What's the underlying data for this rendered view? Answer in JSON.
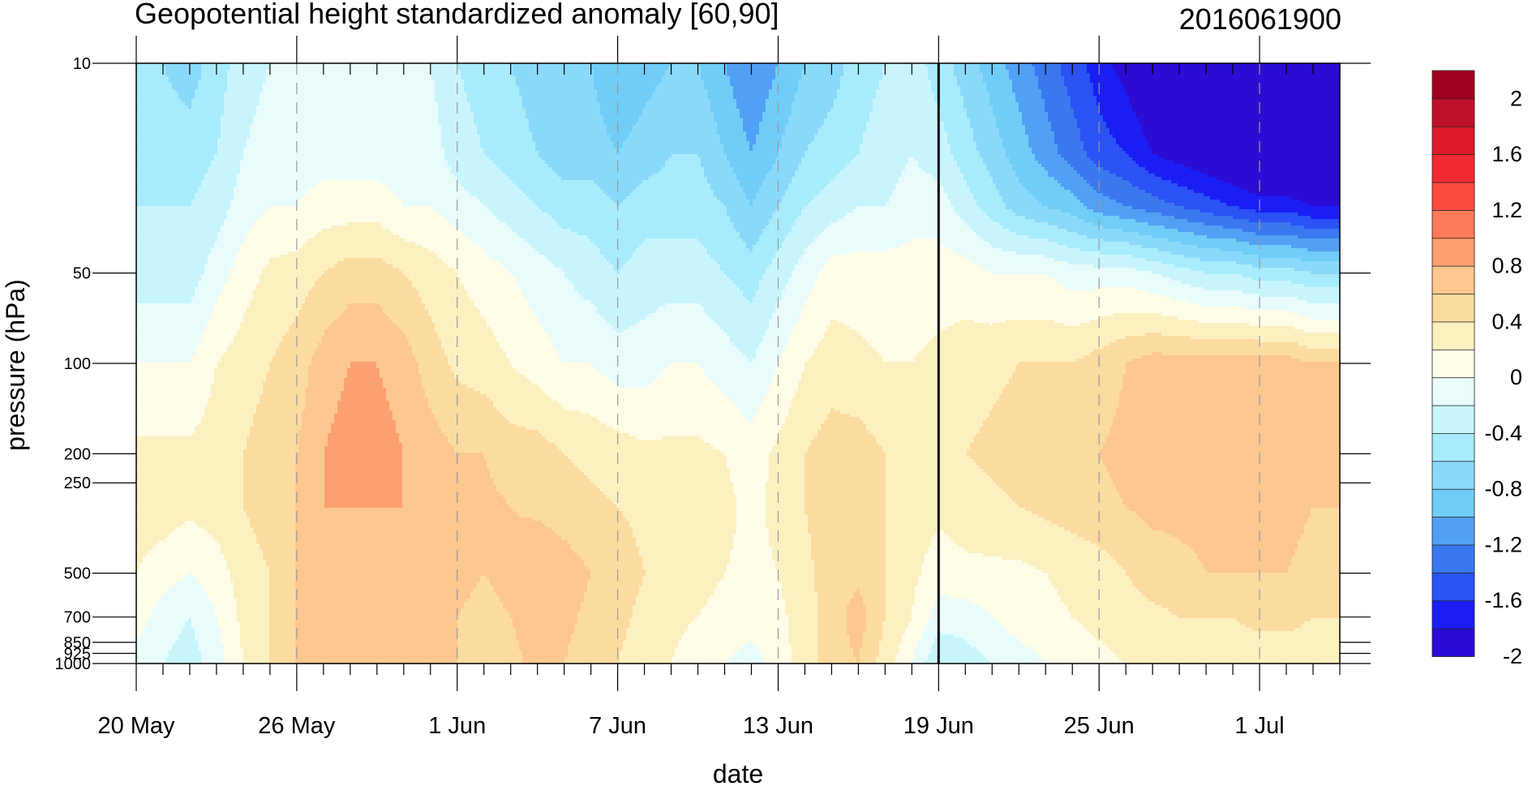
{
  "chart_data": {
    "type": "heatmap",
    "title": "Geopotential height standardized anomaly [60,90]",
    "subtitle": "2016061900",
    "xlabel": "date",
    "ylabel": "pressure (hPa)",
    "x_ticks": [
      "20 May",
      "26 May",
      "1 Jun",
      "7 Jun",
      "13 Jun",
      "19 Jun",
      "25 Jun",
      "1 Jul"
    ],
    "x_tick_days": [
      0,
      6,
      12,
      18,
      24,
      30,
      36,
      42
    ],
    "x_range_days": [
      0,
      45
    ],
    "current_day": 30,
    "y_ticks": [
      10,
      50,
      100,
      200,
      250,
      500,
      700,
      850,
      925,
      1000
    ],
    "y_tick_labels": [
      "10",
      "50",
      "100",
      "200",
      "250",
      "500",
      "700",
      "850",
      "925",
      "1000"
    ],
    "ylim": [
      1000,
      10
    ],
    "colorbar_labels": [
      "2",
      "1.6",
      "1.2",
      "0.8",
      "0.4",
      "0",
      "-0.4",
      "-0.8",
      "-1.2",
      "-1.6",
      "-2"
    ],
    "colorbar_levels": [
      -2.2,
      -2.0,
      -1.8,
      -1.6,
      -1.4,
      -1.2,
      -1.0,
      -0.8,
      -0.6,
      -0.4,
      -0.2,
      0,
      0.2,
      0.4,
      0.6,
      0.8,
      1.0,
      1.2,
      1.4,
      1.6,
      1.8,
      2.0,
      2.2
    ],
    "colorbar_colors": [
      "#2a0cd4",
      "#1a1ef5",
      "#2a52f5",
      "#3a78f0",
      "#52a0f5",
      "#70cdf8",
      "#8ad9fa",
      "#a8ebfc",
      "#c8f5fd",
      "#e8fcfc",
      "#fffce8",
      "#fdf0c0",
      "#fcdba0",
      "#fcc890",
      "#fca070",
      "#fd7a58",
      "#fc4a40",
      "#f02a32",
      "#dc1a2a",
      "#c0102a",
      "#a00020"
    ],
    "grid_rows": [
      {
        "p": 10,
        "v": [
          -0.8,
          -0.8,
          -0.9,
          -0.7,
          -0.5,
          -0.4,
          -0.4,
          -0.4,
          -0.4,
          -0.4,
          -0.4,
          -0.4,
          -0.6,
          -0.7,
          -0.8,
          -0.9,
          -1.0,
          -1.0,
          -1.2,
          -1.1,
          -1.0,
          -1.0,
          -1.2,
          -1.4,
          -1.2,
          -1.0,
          -0.9,
          -0.7,
          -0.6,
          -0.5,
          -0.7,
          -0.9,
          -1.1,
          -1.3,
          -1.5,
          -1.7,
          -1.9,
          -2.1,
          -2.3,
          -2.5,
          -2.7,
          -2.8,
          -2.9,
          -3.0,
          -3.0,
          -3.0
        ]
      },
      {
        "p": 20,
        "v": [
          -0.7,
          -0.7,
          -0.7,
          -0.6,
          -0.4,
          -0.3,
          -0.3,
          -0.3,
          -0.3,
          -0.3,
          -0.3,
          -0.3,
          -0.5,
          -0.6,
          -0.7,
          -0.8,
          -0.9,
          -0.9,
          -1.0,
          -0.9,
          -0.8,
          -0.8,
          -1.0,
          -1.2,
          -1.0,
          -0.8,
          -0.7,
          -0.6,
          -0.5,
          -0.4,
          -0.5,
          -0.7,
          -0.9,
          -1.1,
          -1.3,
          -1.5,
          -1.7,
          -1.8,
          -2.0,
          -2.1,
          -2.2,
          -2.3,
          -2.4,
          -2.4,
          -2.4,
          -2.4
        ]
      },
      {
        "p": 30,
        "v": [
          -0.6,
          -0.6,
          -0.6,
          -0.5,
          -0.3,
          -0.2,
          -0.2,
          -0.1,
          -0.1,
          -0.1,
          -0.2,
          -0.2,
          -0.3,
          -0.4,
          -0.5,
          -0.6,
          -0.7,
          -0.7,
          -0.8,
          -0.7,
          -0.7,
          -0.7,
          -0.8,
          -1.0,
          -0.8,
          -0.6,
          -0.5,
          -0.4,
          -0.4,
          -0.3,
          -0.3,
          -0.5,
          -0.7,
          -0.9,
          -1.0,
          -1.1,
          -1.3,
          -1.4,
          -1.5,
          -1.6,
          -1.7,
          -1.8,
          -1.9,
          -1.9,
          -2.0,
          -2.0
        ]
      },
      {
        "p": 50,
        "v": [
          -0.5,
          -0.5,
          -0.5,
          -0.3,
          -0.1,
          0.05,
          0.1,
          0.2,
          0.3,
          0.3,
          0.2,
          0.1,
          0.0,
          -0.1,
          -0.2,
          -0.3,
          -0.4,
          -0.5,
          -0.6,
          -0.5,
          -0.5,
          -0.5,
          -0.6,
          -0.7,
          -0.5,
          -0.3,
          -0.1,
          -0.1,
          -0.1,
          -0.1,
          -0.1,
          -0.1,
          -0.2,
          -0.2,
          -0.2,
          -0.3,
          -0.3,
          -0.3,
          -0.4,
          -0.5,
          -0.6,
          -0.6,
          -0.7,
          -0.7,
          -0.8,
          -0.8
        ]
      },
      {
        "p": 100,
        "v": [
          -0.2,
          -0.2,
          -0.2,
          0.0,
          0.1,
          0.2,
          0.3,
          0.5,
          0.6,
          0.6,
          0.5,
          0.3,
          0.15,
          0.1,
          0.0,
          -0.1,
          -0.2,
          -0.2,
          -0.3,
          -0.3,
          -0.2,
          -0.2,
          -0.3,
          -0.4,
          -0.2,
          0.0,
          0.1,
          0.05,
          0.0,
          0.0,
          0.05,
          0.1,
          0.15,
          0.2,
          0.2,
          0.2,
          0.3,
          0.4,
          0.5,
          0.5,
          0.5,
          0.5,
          0.5,
          0.5,
          0.4,
          0.4
        ]
      },
      {
        "p": 200,
        "v": [
          0.05,
          0.05,
          0.05,
          0.1,
          0.2,
          0.3,
          0.4,
          0.6,
          0.7,
          0.7,
          0.6,
          0.5,
          0.4,
          0.4,
          0.3,
          0.3,
          0.2,
          0.15,
          0.1,
          0.05,
          0.05,
          0.05,
          0.0,
          -0.1,
          0.05,
          0.2,
          0.3,
          0.3,
          0.2,
          0.1,
          0.1,
          0.2,
          0.25,
          0.3,
          0.3,
          0.3,
          0.4,
          0.45,
          0.5,
          0.5,
          0.5,
          0.5,
          0.5,
          0.5,
          0.45,
          0.45
        ]
      },
      {
        "p": 300,
        "v": [
          0.1,
          0.1,
          0.05,
          0.1,
          0.2,
          0.3,
          0.4,
          0.6,
          0.6,
          0.6,
          0.6,
          0.6,
          0.5,
          0.45,
          0.4,
          0.35,
          0.3,
          0.25,
          0.2,
          0.15,
          0.1,
          0.1,
          0.05,
          -0.05,
          0.05,
          0.2,
          0.3,
          0.3,
          0.2,
          0.1,
          0.05,
          0.1,
          0.15,
          0.2,
          0.25,
          0.3,
          0.35,
          0.4,
          0.45,
          0.45,
          0.45,
          0.45,
          0.45,
          0.45,
          0.4,
          0.4
        ]
      },
      {
        "p": 500,
        "v": [
          0.0,
          -0.1,
          -0.2,
          -0.1,
          0.1,
          0.2,
          0.4,
          0.5,
          0.55,
          0.6,
          0.5,
          0.5,
          0.45,
          0.4,
          0.45,
          0.6,
          0.5,
          0.4,
          0.3,
          0.2,
          0.1,
          0.05,
          0.0,
          -0.05,
          0.0,
          0.15,
          0.3,
          0.35,
          0.2,
          0.05,
          -0.1,
          -0.05,
          -0.05,
          -0.05,
          0.0,
          0.05,
          0.1,
          0.2,
          0.3,
          0.35,
          0.4,
          0.4,
          0.4,
          0.4,
          0.35,
          0.35
        ]
      },
      {
        "p": 700,
        "v": [
          -0.1,
          -0.3,
          -0.4,
          -0.2,
          0.05,
          0.2,
          0.4,
          0.5,
          0.5,
          0.6,
          0.5,
          0.5,
          0.4,
          0.35,
          0.4,
          0.5,
          0.45,
          0.35,
          0.25,
          0.15,
          0.05,
          0.0,
          -0.05,
          -0.1,
          -0.05,
          0.1,
          0.3,
          0.5,
          0.2,
          0.0,
          -0.3,
          -0.3,
          -0.2,
          -0.1,
          -0.05,
          0.0,
          0.05,
          0.1,
          0.15,
          0.2,
          0.2,
          0.2,
          0.25,
          0.25,
          0.2,
          0.2
        ]
      },
      {
        "p": 1000,
        "v": [
          -0.3,
          -0.4,
          -0.5,
          -0.3,
          0.0,
          0.2,
          0.4,
          0.5,
          0.5,
          0.55,
          0.5,
          0.45,
          0.4,
          0.3,
          0.35,
          0.45,
          0.4,
          0.3,
          0.2,
          0.1,
          0.0,
          -0.1,
          -0.2,
          -0.3,
          -0.1,
          0.1,
          0.3,
          0.4,
          0.1,
          -0.2,
          -0.6,
          -0.5,
          -0.4,
          -0.3,
          -0.2,
          -0.1,
          -0.05,
          0.0,
          0.05,
          0.05,
          0.05,
          0.1,
          0.1,
          0.1,
          0.1,
          0.1
        ]
      }
    ]
  }
}
